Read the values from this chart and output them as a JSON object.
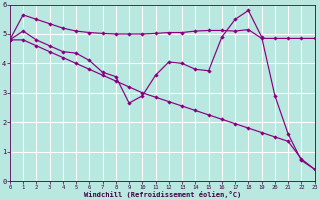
{
  "background_color": "#b8e8e0",
  "line_color": "#880080",
  "grid_color": "#d0d0d0",
  "xlabel": "Windchill (Refroidissement éolien,°C)",
  "xlim": [
    0,
    23
  ],
  "ylim": [
    0,
    6
  ],
  "xticks": [
    0,
    1,
    2,
    3,
    4,
    5,
    6,
    7,
    8,
    9,
    10,
    11,
    12,
    13,
    14,
    15,
    16,
    17,
    18,
    19,
    20,
    21,
    22,
    23
  ],
  "yticks": [
    0,
    1,
    2,
    3,
    4,
    5,
    6
  ],
  "line1_x": [
    0,
    1,
    2,
    3,
    4,
    5,
    6,
    7,
    8,
    9,
    10,
    11,
    12,
    13,
    14,
    15,
    16,
    17,
    18,
    19,
    20,
    21,
    22,
    23
  ],
  "line1_y": [
    4.8,
    5.1,
    4.8,
    4.6,
    4.4,
    4.35,
    4.1,
    3.7,
    3.55,
    2.65,
    2.9,
    3.6,
    4.05,
    4.0,
    3.8,
    3.75,
    4.9,
    5.5,
    5.8,
    4.9,
    2.9,
    1.6,
    0.7,
    0.4
  ],
  "line2_x": [
    0,
    1,
    2,
    3,
    4,
    5,
    6,
    7,
    8,
    9,
    10,
    11,
    12,
    13,
    14,
    15,
    16,
    17,
    18,
    19,
    20,
    21,
    22,
    23
  ],
  "line2_y": [
    4.8,
    5.65,
    5.5,
    5.35,
    5.2,
    5.1,
    5.05,
    5.02,
    5.0,
    5.0,
    5.0,
    5.02,
    5.05,
    5.05,
    5.1,
    5.12,
    5.12,
    5.1,
    5.15,
    4.85,
    4.85,
    4.85,
    4.85,
    4.85
  ],
  "line3_x": [
    0,
    1,
    2,
    3,
    4,
    5,
    6,
    7,
    8,
    9,
    10,
    11,
    12,
    13,
    14,
    15,
    16,
    17,
    18,
    19,
    20,
    21,
    22,
    23
  ],
  "line3_y": [
    4.8,
    4.8,
    4.6,
    4.4,
    4.2,
    4.0,
    3.8,
    3.6,
    3.4,
    3.2,
    3.0,
    2.85,
    2.7,
    2.55,
    2.4,
    2.25,
    2.1,
    1.95,
    1.8,
    1.65,
    1.5,
    1.35,
    0.75,
    0.4
  ]
}
